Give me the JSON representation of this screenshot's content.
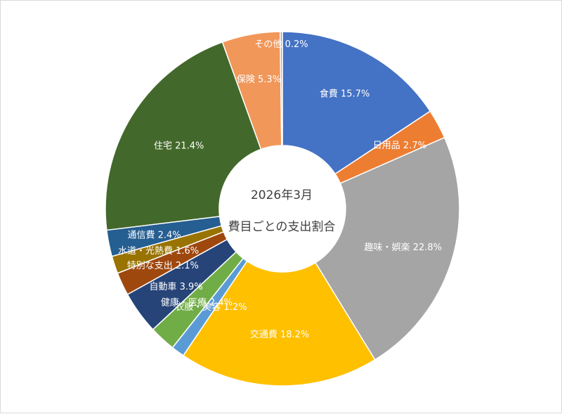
{
  "chart_data": {
    "type": "pie",
    "variant": "donut",
    "center_title": [
      "2026年3月",
      "費目ごとの支出割合"
    ],
    "slices": [
      {
        "label": "食費",
        "value": 15.7,
        "display": "15.7%",
        "color": "#4472C4"
      },
      {
        "label": "日用品",
        "value": 2.7,
        "display": "2.7%",
        "color": "#ED7D31"
      },
      {
        "label": "趣味・娯楽",
        "value": 22.8,
        "display": "22.8%",
        "color": "#A5A5A5"
      },
      {
        "label": "交通費",
        "value": 18.2,
        "display": "18.2%",
        "color": "#FFC000"
      },
      {
        "label": "衣服・美容",
        "value": 1.2,
        "display": "1.2%",
        "color": "#5B9BD5"
      },
      {
        "label": "健康・医療",
        "value": 2.4,
        "display": "2.4%",
        "color": "#70AD47"
      },
      {
        "label": "自動車",
        "value": 3.9,
        "display": "3.9%",
        "color": "#264478"
      },
      {
        "label": "特別な支出",
        "value": 2.1,
        "display": "2.1%",
        "color": "#9E480E"
      },
      {
        "label": "水道・光熱費",
        "value": 1.6,
        "display": "1.6%",
        "color": "#997300"
      },
      {
        "label": "通信費",
        "value": 2.4,
        "display": "2.4%",
        "color": "#255E91"
      },
      {
        "label": "住宅",
        "value": 21.4,
        "display": "21.4%",
        "color": "#43682B"
      },
      {
        "label": "保険",
        "value": 5.3,
        "display": "5.3%",
        "color": "#F1975A"
      },
      {
        "label": "その他",
        "value": 0.2,
        "display": "0.2%",
        "color": "#A5A5A5"
      }
    ],
    "start": "12 o'clock",
    "direction": "clockwise",
    "legend": "none"
  }
}
